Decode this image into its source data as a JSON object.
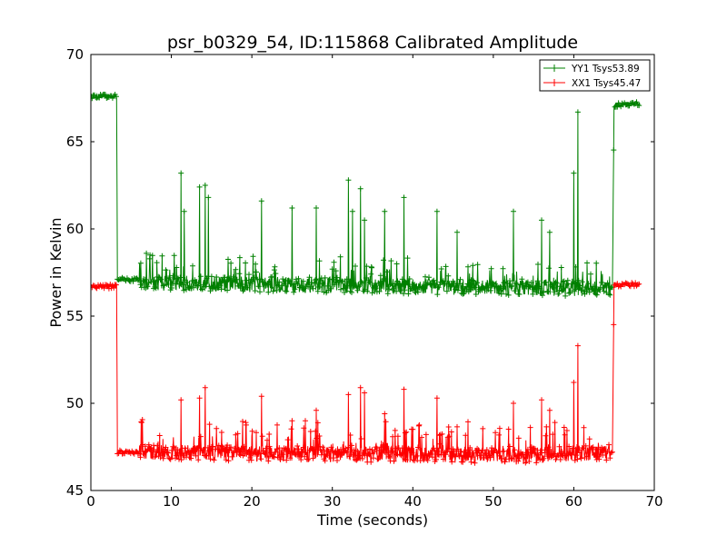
{
  "chart_data": {
    "type": "line",
    "title": "psr_b0329_54, ID:115868 Calibrated Amplitude",
    "xlabel": "Time (seconds)",
    "ylabel": "Power in Kelvin",
    "xlim": [
      0,
      70
    ],
    "ylim": [
      45,
      70
    ],
    "xticks": [
      0,
      10,
      20,
      30,
      40,
      50,
      60,
      70
    ],
    "yticks": [
      45,
      50,
      55,
      60,
      65,
      70
    ],
    "grid": false,
    "legend_position": "top-right",
    "marker": "+",
    "series": [
      {
        "name": "YY1 Tsys53.89",
        "color": "#008000",
        "baseline": [
          [
            0,
            67.6
          ],
          [
            3.2,
            67.6
          ],
          [
            3.3,
            57.1
          ],
          [
            6,
            57.1
          ],
          [
            6.2,
            56.9
          ],
          [
            58,
            56.6
          ],
          [
            64.8,
            56.6
          ],
          [
            65.0,
            67.1
          ],
          [
            68.2,
            67.2
          ]
        ],
        "spikes": [
          [
            11.2,
            63.2
          ],
          [
            11.6,
            61.0
          ],
          [
            13.5,
            62.4
          ],
          [
            14.2,
            62.5
          ],
          [
            14.6,
            61.8
          ],
          [
            21.2,
            61.6
          ],
          [
            25.0,
            61.2
          ],
          [
            28.0,
            61.2
          ],
          [
            32.0,
            62.8
          ],
          [
            32.5,
            61.0
          ],
          [
            33.5,
            62.3
          ],
          [
            34.0,
            60.5
          ],
          [
            36.5,
            61.0
          ],
          [
            38.9,
            61.8
          ],
          [
            43.0,
            61.0
          ],
          [
            45.5,
            59.8
          ],
          [
            52.5,
            61.0
          ],
          [
            56.0,
            60.5
          ],
          [
            57.0,
            59.8
          ],
          [
            60.0,
            63.2
          ],
          [
            60.5,
            66.7
          ]
        ]
      },
      {
        "name": "XX1 Tsys45.47",
        "color": "#ff0000",
        "baseline": [
          [
            0,
            56.7
          ],
          [
            3.2,
            56.7
          ],
          [
            3.3,
            47.2
          ],
          [
            6,
            47.2
          ],
          [
            6.2,
            47.2
          ],
          [
            50,
            47.0
          ],
          [
            52,
            46.9
          ],
          [
            58,
            47.1
          ],
          [
            64.8,
            47.2
          ],
          [
            65.0,
            56.8
          ],
          [
            68.2,
            56.8
          ]
        ],
        "spikes": [
          [
            11.2,
            50.2
          ],
          [
            13.5,
            50.3
          ],
          [
            14.2,
            50.9
          ],
          [
            21.2,
            50.4
          ],
          [
            25.0,
            49.0
          ],
          [
            28.0,
            49.6
          ],
          [
            32.0,
            50.5
          ],
          [
            33.5,
            50.9
          ],
          [
            34.0,
            50.6
          ],
          [
            36.5,
            49.4
          ],
          [
            38.9,
            50.8
          ],
          [
            40.0,
            48.5
          ],
          [
            43.0,
            50.3
          ],
          [
            52.5,
            50.0
          ],
          [
            56.0,
            50.2
          ],
          [
            57.0,
            49.6
          ],
          [
            60.0,
            51.2
          ],
          [
            60.5,
            53.3
          ]
        ]
      }
    ]
  }
}
